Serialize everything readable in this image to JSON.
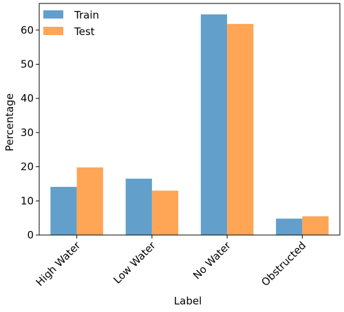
{
  "chart_data": {
    "type": "bar",
    "categories": [
      "High Water",
      "Low Water",
      "No Water",
      "Obstructed"
    ],
    "series": [
      {
        "name": "Train",
        "values": [
          14.1,
          16.5,
          64.6,
          4.8
        ],
        "color": "#62a0cb"
      },
      {
        "name": "Test",
        "values": [
          19.8,
          13.0,
          61.8,
          5.5
        ],
        "color": "#ffa556"
      }
    ],
    "xlabel": "Label",
    "ylabel": "Percentage",
    "ylim": [
      0,
      67.8
    ],
    "yticks": [
      0,
      10,
      20,
      30,
      40,
      50,
      60
    ],
    "legend_position": "top-left",
    "grid": false
  }
}
